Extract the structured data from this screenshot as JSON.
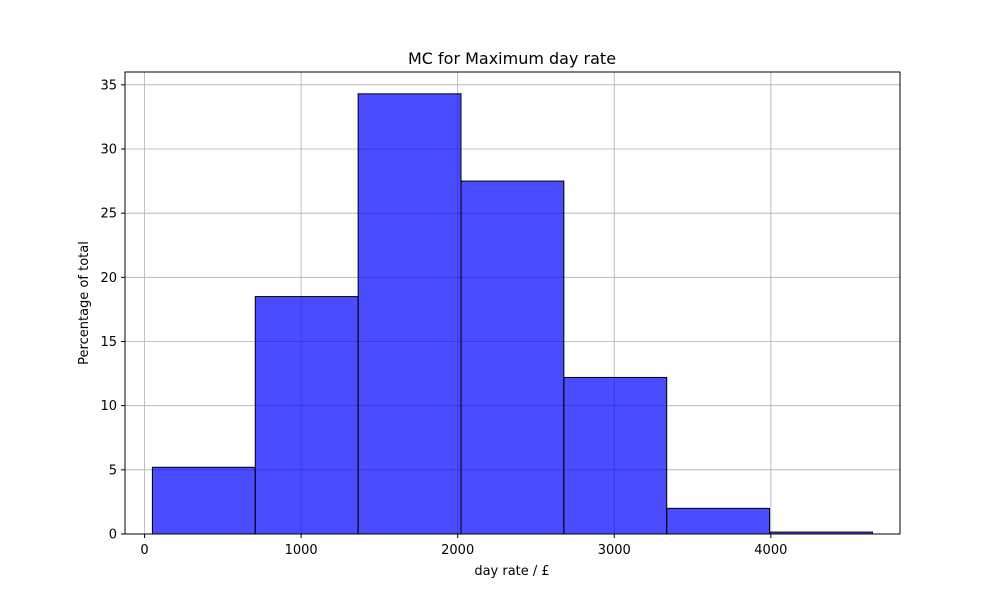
{
  "chart_data": {
    "type": "bar",
    "histogram": true,
    "title": "MC for Maximum day rate",
    "xlabel": "day rate / £",
    "ylabel": "Percentage of total",
    "bin_edges": [
      50,
      707,
      1364,
      2021,
      2678,
      3335,
      3992,
      4649
    ],
    "values": [
      5.2,
      18.5,
      34.3,
      27.5,
      12.2,
      2.0,
      0.15
    ],
    "xlim": [
      -125,
      4825
    ],
    "ylim": [
      0,
      36
    ],
    "xticks": [
      0,
      1000,
      2000,
      3000,
      4000
    ],
    "yticks": [
      0,
      5,
      10,
      15,
      20,
      25,
      30,
      35
    ],
    "grid": true,
    "colors": {
      "bar_fill": "#0000ff",
      "bar_fill_opacity": 0.7,
      "bar_edge": "#000000",
      "grid": "#b0b0b0"
    }
  }
}
